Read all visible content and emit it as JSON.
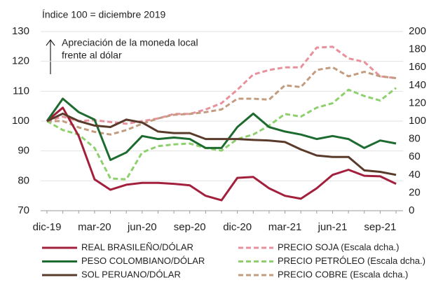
{
  "chart_data": {
    "type": "line",
    "subtitle": "Índice 100 = diciembre 2019",
    "annotation": [
      "Apreciación de la moneda local",
      "frente al dólar"
    ],
    "categories": [
      "dic-19",
      null,
      null,
      "mar-20",
      null,
      null,
      "jun-20",
      null,
      null,
      "sep-20",
      null,
      null,
      "dic-20",
      null,
      null,
      "mar-21",
      null,
      null,
      "jun-21",
      null,
      null,
      "sep-21",
      null
    ],
    "ylim": [
      70,
      130
    ],
    "yticks": [
      70,
      80,
      90,
      100,
      110,
      120,
      130
    ],
    "y2lim": [
      0,
      200
    ],
    "y2ticks": [
      0,
      20,
      40,
      60,
      80,
      100,
      120,
      140,
      160,
      180,
      200
    ],
    "grid": true,
    "series": [
      {
        "name": "REAL BRASILEÑO/DÓLAR",
        "color": "#a3203d",
        "style": "solid",
        "values": [
          100,
          104.5,
          95,
          80.5,
          77,
          78.7,
          79.3,
          79.3,
          79,
          78.5,
          75,
          73.5,
          81,
          81.3,
          77.5,
          75,
          74,
          77.5,
          82,
          83.7,
          81.7,
          81.5,
          79
        ]
      },
      {
        "name": "PESO COLOMBIANO/DÓLAR",
        "color": "#1e6b30",
        "style": "solid",
        "values": [
          100,
          107.5,
          103,
          100.5,
          87,
          89.5,
          95,
          94,
          94.5,
          94,
          91,
          91,
          98,
          102.5,
          98,
          96.5,
          95.5,
          94,
          95,
          94,
          91,
          93.5,
          92.5
        ]
      },
      {
        "name": "SOL PERUANO/DÓLAR",
        "color": "#5a3b2b",
        "style": "solid",
        "values": [
          100,
          102.5,
          100,
          98.5,
          98,
          100.5,
          99.5,
          96.5,
          96,
          96,
          94,
          94,
          94,
          93.7,
          93.5,
          93,
          90.5,
          88.5,
          88,
          88,
          83.5,
          83,
          82
        ]
      },
      {
        "name": "PRECIO SOJA (Escala dcha.)",
        "color": "#e8909c",
        "style": "dashed",
        "axis": "y2",
        "values": [
          100,
          105,
          100,
          101,
          99,
          97,
          100,
          103,
          108,
          108,
          113,
          120,
          135,
          152,
          157,
          160,
          160,
          182,
          183,
          170,
          166,
          150,
          148
        ]
      },
      {
        "name": "PRECIO PETRÓLEO (Escala dcha.)",
        "color": "#8dd06c",
        "style": "dashed",
        "axis": "y2",
        "values": [
          100,
          90,
          85,
          70,
          36,
          35,
          65,
          72,
          74,
          75,
          70,
          67,
          80,
          85,
          95,
          108,
          105,
          115,
          120,
          135,
          128,
          123,
          137
        ]
      },
      {
        "name": "PRECIO COBRE (Escala dcha.)",
        "color": "#c39c80",
        "style": "dashed",
        "axis": "y2",
        "values": [
          100,
          100,
          93,
          88,
          85,
          90,
          97,
          103,
          107,
          108,
          110,
          113,
          125,
          125,
          124,
          140,
          138,
          157,
          160,
          150,
          155,
          150,
          148
        ]
      }
    ]
  }
}
